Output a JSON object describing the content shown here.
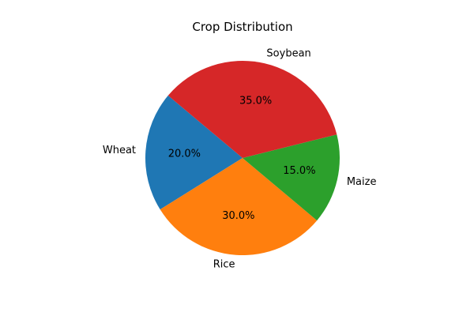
{
  "chart_data": {
    "type": "pie",
    "title": "Crop Distribution",
    "labels": [
      "Wheat",
      "Rice",
      "Maize",
      "Soybean"
    ],
    "values": [
      20,
      30,
      15,
      35
    ],
    "percent_labels": [
      "20.0%",
      "30.0%",
      "15.0%",
      "35.0%"
    ],
    "colors": [
      "#1f77b4",
      "#ff7f0e",
      "#2ca02c",
      "#d62728"
    ],
    "start_angle_deg": 140,
    "direction": "counterclockwise"
  }
}
